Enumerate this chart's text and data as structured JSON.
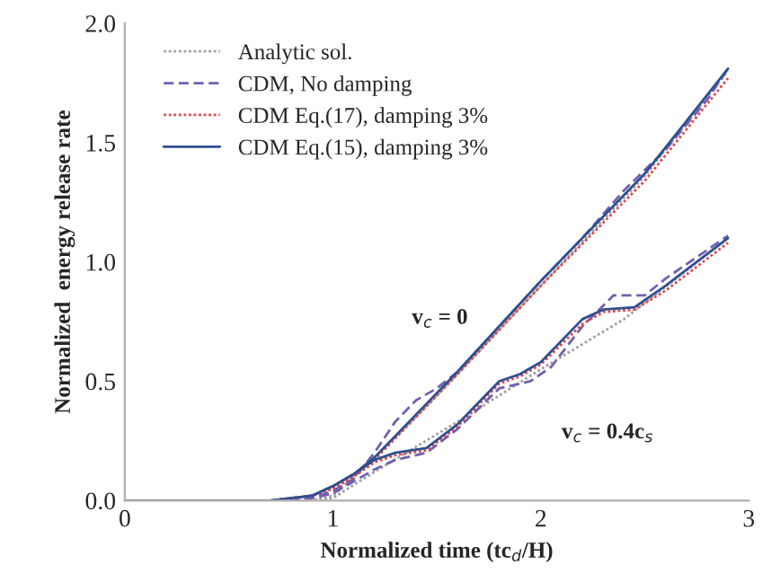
{
  "chart_data": {
    "type": "line",
    "xlabel": "Normalized time (tc$_{d}$/H)",
    "ylabel": "Normalized  energy release rate",
    "xlim": [
      0,
      3
    ],
    "ylim": [
      0,
      2
    ],
    "xticks": [
      0,
      1,
      2,
      3
    ],
    "yticks": [
      {
        "value": 0,
        "label": "0.0"
      },
      {
        "value": 0.5,
        "label": "0.5"
      },
      {
        "value": 1,
        "label": "1.0"
      },
      {
        "value": 1.5,
        "label": "1.5"
      },
      {
        "value": 2,
        "label": "2.0"
      }
    ],
    "legend": "top left",
    "grid": false,
    "series": [
      {
        "name": "Analytic sol.",
        "color": "#a0a0a0",
        "line_style": "dotted",
        "x": [
          0,
          0.9,
          1.0,
          1.1,
          1.2,
          1.4,
          1.6,
          2.0,
          2.5,
          2.9
        ],
        "values": [
          0,
          0,
          0.02,
          0.1,
          0.18,
          0.35,
          0.53,
          0.9,
          1.36,
          1.8
        ]
      },
      {
        "name": "CDM, No damping",
        "color": "#7060b0",
        "line_style": "dashed",
        "x": [
          0,
          0.7,
          0.9,
          1.0,
          1.1,
          1.2,
          1.3,
          1.4,
          1.5,
          1.6,
          1.8,
          2.0,
          2.2,
          2.4,
          2.6,
          2.8,
          2.9
        ],
        "values": [
          0,
          0,
          0.01,
          0.04,
          0.09,
          0.2,
          0.33,
          0.42,
          0.47,
          0.54,
          0.73,
          0.92,
          1.1,
          1.3,
          1.47,
          1.68,
          1.81
        ]
      },
      {
        "name": "CDM Eq.(17), damping 3%",
        "color": "#e04848",
        "line_style": "dotted",
        "x": [
          0,
          0.7,
          0.9,
          1.0,
          1.1,
          1.2,
          1.4,
          1.6,
          2.0,
          2.5,
          2.9
        ],
        "values": [
          0,
          0,
          0.02,
          0.05,
          0.1,
          0.17,
          0.35,
          0.53,
          0.9,
          1.34,
          1.77
        ]
      },
      {
        "name": "CDM Eq.(15), damping 3%",
        "color": "#2f4f8f",
        "line_style": "solid",
        "x": [
          0,
          0.7,
          0.9,
          1.0,
          1.1,
          1.2,
          1.4,
          1.6,
          2.0,
          2.5,
          2.9
        ],
        "values": [
          0,
          0,
          0.02,
          0.06,
          0.11,
          0.18,
          0.36,
          0.54,
          0.92,
          1.37,
          1.81
        ]
      },
      {
        "color": "#a0a0a0",
        "line_style": "dotted",
        "x": [
          0,
          0.9,
          1.0,
          1.2,
          1.6,
          2.0,
          2.4,
          2.9
        ],
        "values": [
          0,
          0,
          0.01,
          0.12,
          0.33,
          0.55,
          0.76,
          1.1
        ]
      },
      {
        "color": "#7060b0",
        "line_style": "dashed",
        "x": [
          0,
          0.7,
          0.9,
          1.0,
          1.1,
          1.2,
          1.3,
          1.45,
          1.6,
          1.8,
          1.95,
          2.05,
          2.2,
          2.35,
          2.5,
          2.6,
          2.9
        ],
        "values": [
          0,
          0,
          0.01,
          0.03,
          0.08,
          0.13,
          0.17,
          0.2,
          0.3,
          0.47,
          0.5,
          0.56,
          0.73,
          0.86,
          0.86,
          0.93,
          1.11
        ]
      },
      {
        "color": "#e04848",
        "line_style": "dotted",
        "x": [
          0,
          0.7,
          0.9,
          1.0,
          1.1,
          1.2,
          1.3,
          1.45,
          1.6,
          1.8,
          1.9,
          2.0,
          2.2,
          2.3,
          2.45,
          2.6,
          2.9
        ],
        "values": [
          0,
          0,
          0.02,
          0.05,
          0.1,
          0.16,
          0.19,
          0.21,
          0.31,
          0.49,
          0.52,
          0.57,
          0.74,
          0.79,
          0.8,
          0.88,
          1.08
        ]
      },
      {
        "color": "#2f4f8f",
        "line_style": "solid",
        "x": [
          0,
          0.7,
          0.9,
          1.0,
          1.1,
          1.2,
          1.3,
          1.45,
          1.6,
          1.8,
          1.9,
          2.0,
          2.2,
          2.3,
          2.45,
          2.6,
          2.9
        ],
        "values": [
          0,
          0,
          0.02,
          0.06,
          0.11,
          0.17,
          0.2,
          0.22,
          0.32,
          0.5,
          0.53,
          0.58,
          0.76,
          0.8,
          0.81,
          0.9,
          1.1
        ]
      }
    ],
    "annotations": [
      "v$_{c}$ = 0",
      "v$_{c}$ = 0.4c$_{s}$"
    ]
  }
}
